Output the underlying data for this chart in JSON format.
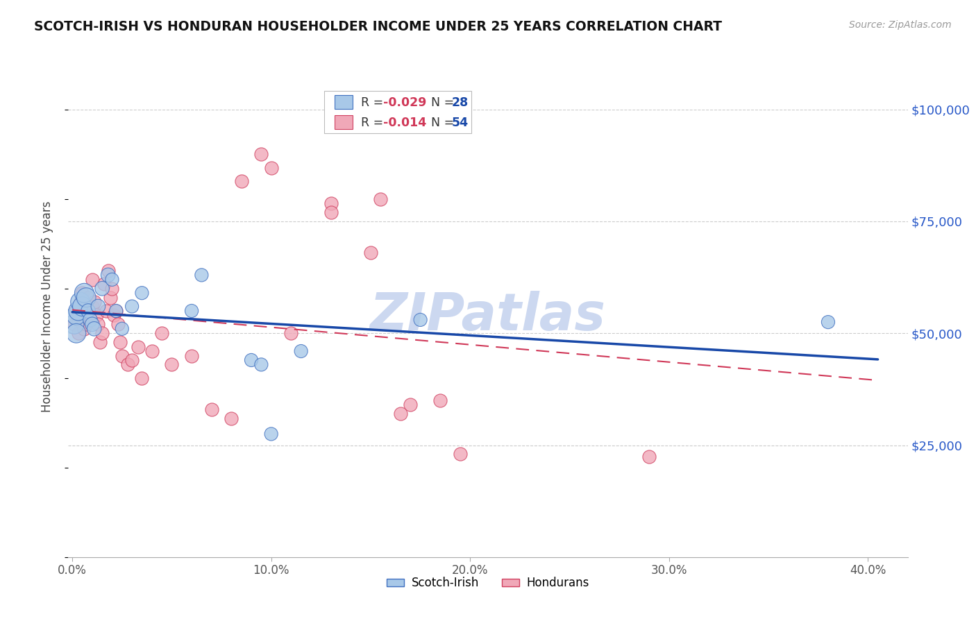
{
  "title": "SCOTCH-IRISH VS HONDURAN HOUSEHOLDER INCOME UNDER 25 YEARS CORRELATION CHART",
  "source": "Source: ZipAtlas.com",
  "ylabel": "Householder Income Under 25 years",
  "ytick_labels": [
    "$25,000",
    "$50,000",
    "$75,000",
    "$100,000"
  ],
  "ytick_vals": [
    25000,
    50000,
    75000,
    100000
  ],
  "xtick_labels": [
    "0.0%",
    "10.0%",
    "20.0%",
    "30.0%",
    "40.0%"
  ],
  "xtick_vals": [
    0.0,
    0.1,
    0.2,
    0.3,
    0.4
  ],
  "ylim": [
    0,
    112000
  ],
  "xlim": [
    -0.002,
    0.42
  ],
  "scotch_irish_x": [
    0.001,
    0.002,
    0.002,
    0.003,
    0.004,
    0.005,
    0.006,
    0.007,
    0.008,
    0.009,
    0.01,
    0.011,
    0.013,
    0.015,
    0.018,
    0.02,
    0.022,
    0.025,
    0.03,
    0.035,
    0.06,
    0.065,
    0.09,
    0.095,
    0.1,
    0.115,
    0.175,
    0.38
  ],
  "scotch_irish_y": [
    52000,
    54000,
    50000,
    55000,
    57000,
    56000,
    59000,
    58000,
    55000,
    53000,
    52000,
    51000,
    56000,
    60000,
    63000,
    62000,
    55000,
    51000,
    56000,
    59000,
    55000,
    63000,
    44000,
    43000,
    27500,
    46000,
    53000,
    52500
  ],
  "honduran_x": [
    0.001,
    0.002,
    0.003,
    0.003,
    0.004,
    0.005,
    0.005,
    0.006,
    0.006,
    0.007,
    0.007,
    0.008,
    0.008,
    0.009,
    0.01,
    0.01,
    0.011,
    0.012,
    0.013,
    0.014,
    0.015,
    0.016,
    0.017,
    0.018,
    0.019,
    0.02,
    0.021,
    0.022,
    0.023,
    0.024,
    0.025,
    0.028,
    0.03,
    0.033,
    0.035,
    0.04,
    0.045,
    0.05,
    0.06,
    0.07,
    0.08,
    0.085,
    0.095,
    0.1,
    0.11,
    0.13,
    0.15,
    0.17,
    0.185,
    0.195,
    0.13,
    0.155,
    0.165,
    0.29
  ],
  "honduran_y": [
    52000,
    55000,
    50000,
    53000,
    57000,
    54000,
    59000,
    51000,
    55000,
    56000,
    52000,
    54000,
    58000,
    53000,
    56000,
    62000,
    57000,
    54000,
    52000,
    48000,
    50000,
    61000,
    55000,
    64000,
    58000,
    60000,
    54000,
    55000,
    52000,
    48000,
    45000,
    43000,
    44000,
    47000,
    40000,
    46000,
    50000,
    43000,
    45000,
    33000,
    31000,
    84000,
    90000,
    87000,
    50000,
    79000,
    68000,
    34000,
    35000,
    23000,
    77000,
    80000,
    32000,
    22500
  ],
  "scotch_irish_color": "#a8c8e8",
  "scotch_irish_edge_color": "#4070c0",
  "honduran_color": "#f0a8b8",
  "honduran_edge_color": "#d04060",
  "line_si_color": "#1848a8",
  "line_hon_color": "#d03858",
  "watermark_color": "#ccd8f0",
  "grid_color": "#cccccc",
  "background_color": "#ffffff",
  "title_color": "#111111",
  "source_color": "#999999",
  "ytick_color": "#2858c8",
  "xtick_color": "#555555",
  "legend_R_color": "#d03858",
  "legend_N_color": "#1848a8"
}
